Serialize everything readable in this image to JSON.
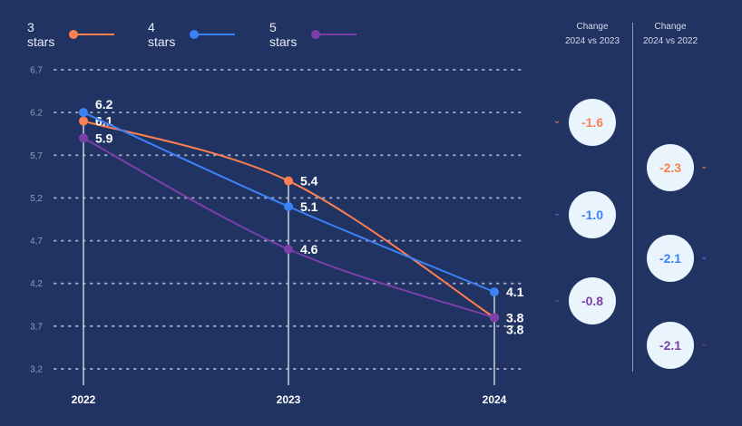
{
  "colors": {
    "background": "#213362",
    "3 stars": "#ff7f50",
    "4 stars": "#3b82f6",
    "5 stars": "#7c3fa8",
    "bubble": "#eaf4fd"
  },
  "chart_data": {
    "type": "line",
    "categories": [
      "2022",
      "2023",
      "2024"
    ],
    "series": [
      {
        "name": "3 stars",
        "values": [
          6.1,
          5.4,
          3.8
        ],
        "color": "#ff7f50"
      },
      {
        "name": "4 stars",
        "values": [
          6.2,
          5.1,
          4.1
        ],
        "color": "#3b82f6"
      },
      {
        "name": "5 stars",
        "values": [
          5.9,
          4.6,
          3.8
        ],
        "color": "#7c3fa8"
      }
    ],
    "yticks": [
      "3,2",
      "3,7",
      "4,2",
      "4,7",
      "5,2",
      "5,7",
      "6,2",
      "6,7"
    ],
    "ytick_values": [
      3.2,
      3.7,
      4.2,
      4.7,
      5.2,
      5.7,
      6.2,
      6.7
    ],
    "ylim": [
      3.2,
      6.7
    ],
    "grid": "horizontal dotted",
    "legend": "top-left",
    "data_labels": {
      "3 stars": [
        "6.1",
        "5.4",
        "3.8"
      ],
      "4 stars": [
        "6.2",
        "5.1",
        "4.1"
      ],
      "5 stars": [
        "5.9",
        "4.6",
        "3.8"
      ]
    }
  },
  "legend": [
    {
      "label": "3 stars"
    },
    {
      "label": "4 stars"
    },
    {
      "label": "5 stars"
    }
  ],
  "change_panel": {
    "columns": [
      {
        "heading_line1": "Change",
        "heading_line2": "2024 vs 2023",
        "values": [
          "-1.6",
          "-1.0",
          "-0.8"
        ]
      },
      {
        "heading_line1": "Change",
        "heading_line2": "2024 vs 2022",
        "values": [
          "-2.3",
          "-2.1",
          "-2.1"
        ]
      }
    ],
    "icon": "chevron-down-icon"
  }
}
